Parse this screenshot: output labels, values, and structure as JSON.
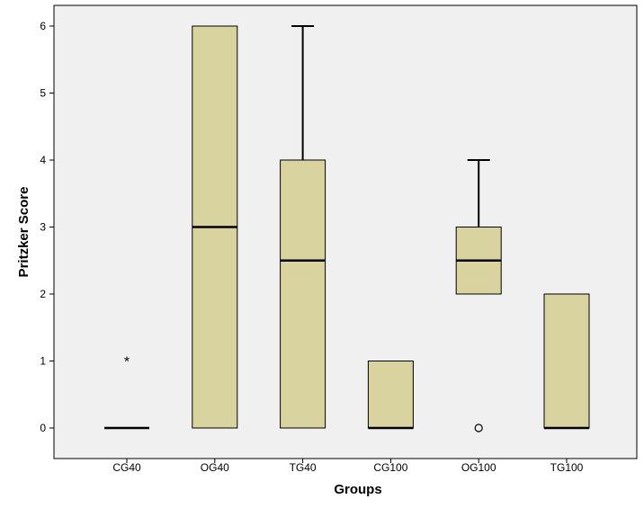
{
  "chart_data": {
    "type": "boxplot",
    "xlabel": "Groups",
    "ylabel": "Pritzker Score",
    "ylim": [
      0,
      6
    ],
    "yticks": [
      0,
      1,
      2,
      3,
      4,
      5,
      6
    ],
    "grid": false,
    "categories": [
      "CG40",
      "OG40",
      "TG40",
      "CG100",
      "OG100",
      "TG100"
    ],
    "boxes": [
      {
        "category": "CG40",
        "min": 0,
        "q1": 0,
        "median": 0,
        "q3": 0,
        "max": 0,
        "outliers": [],
        "extremes": [
          1
        ]
      },
      {
        "category": "OG40",
        "min": 0,
        "q1": 0,
        "median": 3,
        "q3": 6,
        "max": 6,
        "outliers": [],
        "extremes": []
      },
      {
        "category": "TG40",
        "min": 0,
        "q1": 0,
        "median": 2.5,
        "q3": 4,
        "max": 6,
        "outliers": [],
        "extremes": []
      },
      {
        "category": "CG100",
        "min": 0,
        "q1": 0,
        "median": 0,
        "q3": 1,
        "max": 1,
        "outliers": [],
        "extremes": []
      },
      {
        "category": "OG100",
        "min": 2,
        "q1": 2,
        "median": 2.5,
        "q3": 3,
        "max": 4,
        "outliers": [
          0
        ],
        "extremes": []
      },
      {
        "category": "TG100",
        "min": 0,
        "q1": 0,
        "median": 0,
        "q3": 2,
        "max": 2,
        "outliers": [],
        "extremes": []
      }
    ],
    "colors": {
      "box_fill": "#d9d3a0",
      "plot_background": "#f0f0f0",
      "stroke": "#000000"
    }
  }
}
